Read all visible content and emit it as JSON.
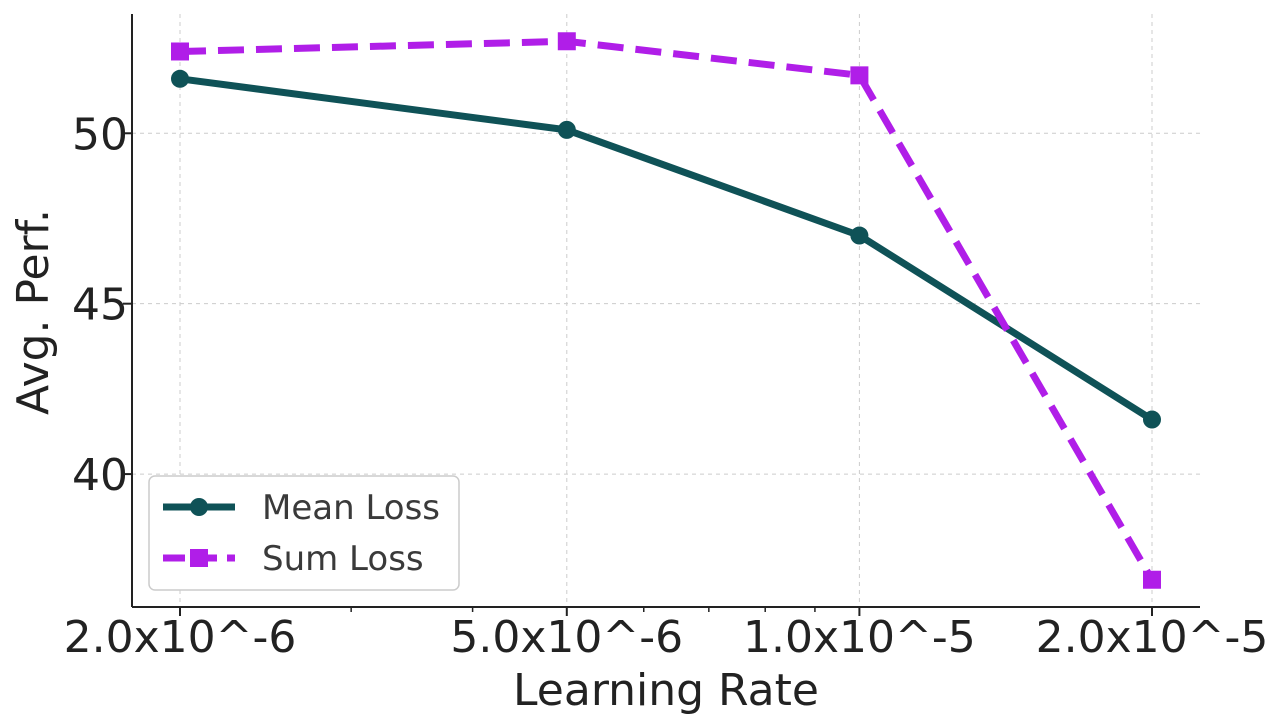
{
  "chart_data": {
    "type": "line",
    "xlabel": "Learning Rate",
    "ylabel": "Avg. Perf.",
    "x": [
      2e-06,
      5e-06,
      1e-05,
      2e-05
    ],
    "xscale": "log",
    "x_tick_labels": [
      "2.0x10^-6",
      "5.0x10^-6",
      "1.0x10^-5",
      "2.0x10^-5"
    ],
    "y_ticks": [
      40,
      45,
      50
    ],
    "ylim": [
      36.1,
      53.5
    ],
    "grid": true,
    "legend_position": "lower-left",
    "series": [
      {
        "name": "Mean Loss",
        "values": [
          51.6,
          50.1,
          47.0,
          41.6
        ],
        "color": "#0f5257",
        "marker": "circle",
        "linestyle": "solid"
      },
      {
        "name": "Sum Loss",
        "values": [
          52.4,
          52.7,
          51.7,
          36.9
        ],
        "color": "#b01ee8",
        "marker": "square",
        "linestyle": "dashed"
      }
    ]
  }
}
